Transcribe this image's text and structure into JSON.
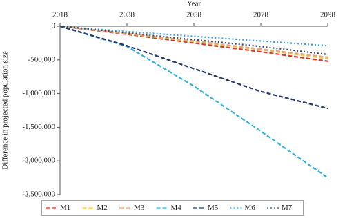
{
  "chart_data": {
    "type": "line",
    "x_label": "Year",
    "y_label": "Difference in projected population size",
    "x": [
      2018,
      2038,
      2058,
      2078,
      2098
    ],
    "xlim": [
      2018,
      2098
    ],
    "xticks": [
      2018,
      2038,
      2058,
      2078,
      2098
    ],
    "ylim": [
      -2500000,
      0
    ],
    "yticks": [
      0,
      {
        "value": -500000,
        "label": "-500,000"
      },
      {
        "value": -1000000,
        "label": "-1,000,000"
      },
      {
        "value": -1500000,
        "label": "-1,500,000"
      },
      {
        "value": -2000000,
        "label": "-2,000,000"
      },
      {
        "value": -2500000,
        "label": "-2,500,000"
      }
    ],
    "grid": false,
    "legend": "bottom",
    "series": [
      {
        "name": "M1",
        "color": "#d9382e",
        "dash": "dashed",
        "values": [
          0,
          -120000,
          -250000,
          -380000,
          -520000
        ]
      },
      {
        "name": "M2",
        "color": "#f5c342",
        "dash": "dashed",
        "values": [
          0,
          -110000,
          -230000,
          -350000,
          -480000
        ]
      },
      {
        "name": "M3",
        "color": "#e0a87a",
        "dash": "dashed",
        "values": [
          0,
          -105000,
          -220000,
          -340000,
          -460000
        ]
      },
      {
        "name": "M4",
        "color": "#36b1d8",
        "dash": "dashed",
        "values": [
          0,
          -300000,
          -890000,
          -1560000,
          -2250000
        ]
      },
      {
        "name": "M5",
        "color": "#233a6b",
        "dash": "dashed",
        "values": [
          0,
          -290000,
          -630000,
          -970000,
          -1220000
        ]
      },
      {
        "name": "M6",
        "color": "#3d9ee0",
        "dash": "dotted",
        "values": [
          0,
          -80000,
          -150000,
          -220000,
          -290000
        ]
      },
      {
        "name": "M7",
        "color": "#3a4a6e",
        "dash": "dotted",
        "values": [
          0,
          -100000,
          -200000,
          -300000,
          -420000
        ]
      }
    ]
  }
}
